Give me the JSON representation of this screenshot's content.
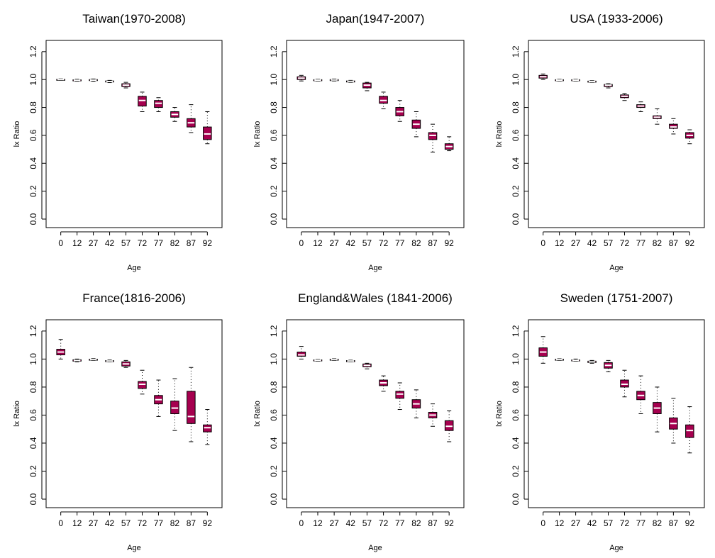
{
  "colors": {
    "box_fill": "#a6004f",
    "median": "#ffffff",
    "line": "#000000",
    "background": "#ffffff"
  },
  "chart_data": [
    {
      "type": "box",
      "title": "Taiwan(1970-2008)",
      "xlabel": "Age",
      "ylabel": "lx Ratio",
      "categories": [
        "0",
        "12",
        "27",
        "42",
        "57",
        "72",
        "77",
        "82",
        "87",
        "92"
      ],
      "ylim": [
        0,
        1.25
      ],
      "yticks": [
        "0.0",
        "0.2",
        "0.4",
        "0.6",
        "0.8",
        "1.0",
        "1.2"
      ],
      "boxes": [
        {
          "low": 0.995,
          "q1": 0.998,
          "median": 1.0,
          "q3": 1.002,
          "high": 1.005
        },
        {
          "low": 0.988,
          "q1": 0.992,
          "median": 0.995,
          "q3": 0.998,
          "high": 1.002
        },
        {
          "low": 0.988,
          "q1": 0.993,
          "median": 0.996,
          "q3": 1.0,
          "high": 1.004
        },
        {
          "low": 0.978,
          "q1": 0.983,
          "median": 0.986,
          "q3": 0.99,
          "high": 0.994
        },
        {
          "low": 0.94,
          "q1": 0.95,
          "median": 0.96,
          "q3": 0.97,
          "high": 0.98
        },
        {
          "low": 0.77,
          "q1": 0.81,
          "median": 0.85,
          "q3": 0.88,
          "high": 0.91
        },
        {
          "low": 0.77,
          "q1": 0.8,
          "median": 0.83,
          "q3": 0.85,
          "high": 0.87
        },
        {
          "low": 0.7,
          "q1": 0.73,
          "median": 0.75,
          "q3": 0.77,
          "high": 0.8
        },
        {
          "low": 0.62,
          "q1": 0.66,
          "median": 0.69,
          "q3": 0.72,
          "high": 0.82
        },
        {
          "low": 0.54,
          "q1": 0.57,
          "median": 0.61,
          "q3": 0.66,
          "high": 0.77
        }
      ]
    },
    {
      "type": "box",
      "title": "Japan(1947-2007)",
      "xlabel": "Age",
      "ylabel": "lx Ratio",
      "categories": [
        "0",
        "12",
        "27",
        "42",
        "57",
        "72",
        "77",
        "82",
        "87",
        "92"
      ],
      "ylim": [
        0,
        1.25
      ],
      "yticks": [
        "0.0",
        "0.2",
        "0.4",
        "0.6",
        "0.8",
        "1.0",
        "1.2"
      ],
      "boxes": [
        {
          "low": 0.99,
          "q1": 1.0,
          "median": 1.01,
          "q3": 1.02,
          "high": 1.03
        },
        {
          "low": 0.99,
          "q1": 0.993,
          "median": 0.996,
          "q3": 0.999,
          "high": 1.002
        },
        {
          "low": 0.99,
          "q1": 0.993,
          "median": 0.997,
          "q3": 1.0,
          "high": 1.004
        },
        {
          "low": 0.98,
          "q1": 0.984,
          "median": 0.987,
          "q3": 0.99,
          "high": 0.994
        },
        {
          "low": 0.92,
          "q1": 0.94,
          "median": 0.96,
          "q3": 0.975,
          "high": 0.98
        },
        {
          "low": 0.79,
          "q1": 0.83,
          "median": 0.85,
          "q3": 0.88,
          "high": 0.91
        },
        {
          "low": 0.7,
          "q1": 0.74,
          "median": 0.77,
          "q3": 0.8,
          "high": 0.85
        },
        {
          "low": 0.59,
          "q1": 0.65,
          "median": 0.68,
          "q3": 0.71,
          "high": 0.77
        },
        {
          "low": 0.48,
          "q1": 0.57,
          "median": 0.6,
          "q3": 0.62,
          "high": 0.68
        },
        {
          "low": 0.49,
          "q1": 0.5,
          "median": 0.52,
          "q3": 0.54,
          "high": 0.59
        }
      ]
    },
    {
      "type": "box",
      "title": "USA (1933-2006)",
      "xlabel": "Age",
      "ylabel": "lx Ratio",
      "categories": [
        "0",
        "12",
        "27",
        "42",
        "57",
        "72",
        "77",
        "82",
        "87",
        "92"
      ],
      "ylim": [
        0,
        1.25
      ],
      "yticks": [
        "0.0",
        "0.2",
        "0.4",
        "0.6",
        "0.8",
        "1.0",
        "1.2"
      ],
      "boxes": [
        {
          "low": 1.0,
          "q1": 1.01,
          "median": 1.02,
          "q3": 1.03,
          "high": 1.04
        },
        {
          "low": 0.99,
          "q1": 0.993,
          "median": 0.996,
          "q3": 0.999,
          "high": 1.002
        },
        {
          "low": 0.99,
          "q1": 0.993,
          "median": 0.996,
          "q3": 0.999,
          "high": 1.002
        },
        {
          "low": 0.98,
          "q1": 0.983,
          "median": 0.986,
          "q3": 0.989,
          "high": 0.992
        },
        {
          "low": 0.94,
          "q1": 0.95,
          "median": 0.96,
          "q3": 0.965,
          "high": 0.97
        },
        {
          "low": 0.85,
          "q1": 0.87,
          "median": 0.88,
          "q3": 0.89,
          "high": 0.9
        },
        {
          "low": 0.77,
          "q1": 0.8,
          "median": 0.81,
          "q3": 0.82,
          "high": 0.84
        },
        {
          "low": 0.68,
          "q1": 0.72,
          "median": 0.73,
          "q3": 0.74,
          "high": 0.79
        },
        {
          "low": 0.61,
          "q1": 0.65,
          "median": 0.66,
          "q3": 0.68,
          "high": 0.72
        },
        {
          "low": 0.54,
          "q1": 0.58,
          "median": 0.6,
          "q3": 0.62,
          "high": 0.64
        }
      ]
    },
    {
      "type": "box",
      "title": "France(1816-2006)",
      "xlabel": "Age",
      "ylabel": "lx Ratio",
      "categories": [
        "0",
        "12",
        "27",
        "42",
        "57",
        "72",
        "77",
        "82",
        "87",
        "92"
      ],
      "ylim": [
        0,
        1.25
      ],
      "yticks": [
        "0.0",
        "0.2",
        "0.4",
        "0.6",
        "0.8",
        "1.0",
        "1.2"
      ],
      "boxes": [
        {
          "low": 1.0,
          "q1": 1.03,
          "median": 1.05,
          "q3": 1.07,
          "high": 1.14
        },
        {
          "low": 0.98,
          "q1": 0.985,
          "median": 0.99,
          "q3": 0.995,
          "high": 1.0
        },
        {
          "low": 0.99,
          "q1": 0.993,
          "median": 0.996,
          "q3": 0.999,
          "high": 1.003
        },
        {
          "low": 0.98,
          "q1": 0.983,
          "median": 0.986,
          "q3": 0.989,
          "high": 0.993
        },
        {
          "low": 0.94,
          "q1": 0.95,
          "median": 0.965,
          "q3": 0.98,
          "high": 0.99
        },
        {
          "low": 0.75,
          "q1": 0.79,
          "median": 0.82,
          "q3": 0.84,
          "high": 0.92
        },
        {
          "low": 0.59,
          "q1": 0.68,
          "median": 0.71,
          "q3": 0.74,
          "high": 0.85
        },
        {
          "low": 0.49,
          "q1": 0.61,
          "median": 0.65,
          "q3": 0.7,
          "high": 0.86
        },
        {
          "low": 0.41,
          "q1": 0.54,
          "median": 0.59,
          "q3": 0.77,
          "high": 0.94
        },
        {
          "low": 0.39,
          "q1": 0.48,
          "median": 0.51,
          "q3": 0.53,
          "high": 0.64
        }
      ]
    },
    {
      "type": "box",
      "title": "England&Wales (1841-2006)",
      "xlabel": "Age",
      "ylabel": "lx Ratio",
      "categories": [
        "0",
        "12",
        "27",
        "42",
        "57",
        "72",
        "77",
        "82",
        "87",
        "92"
      ],
      "ylim": [
        0,
        1.25
      ],
      "yticks": [
        "0.0",
        "0.2",
        "0.4",
        "0.6",
        "0.8",
        "1.0",
        "1.2"
      ],
      "boxes": [
        {
          "low": 1.0,
          "q1": 1.02,
          "median": 1.03,
          "q3": 1.05,
          "high": 1.09
        },
        {
          "low": 0.985,
          "q1": 0.988,
          "median": 0.991,
          "q3": 0.994,
          "high": 0.997
        },
        {
          "low": 0.99,
          "q1": 0.993,
          "median": 0.996,
          "q3": 0.999,
          "high": 1.002
        },
        {
          "low": 0.98,
          "q1": 0.983,
          "median": 0.986,
          "q3": 0.989,
          "high": 0.992
        },
        {
          "low": 0.93,
          "q1": 0.945,
          "median": 0.955,
          "q3": 0.965,
          "high": 0.97
        },
        {
          "low": 0.77,
          "q1": 0.81,
          "median": 0.83,
          "q3": 0.85,
          "high": 0.88
        },
        {
          "low": 0.64,
          "q1": 0.72,
          "median": 0.75,
          "q3": 0.77,
          "high": 0.83
        },
        {
          "low": 0.58,
          "q1": 0.65,
          "median": 0.68,
          "q3": 0.71,
          "high": 0.78
        },
        {
          "low": 0.52,
          "q1": 0.58,
          "median": 0.6,
          "q3": 0.62,
          "high": 0.68
        },
        {
          "low": 0.41,
          "q1": 0.49,
          "median": 0.52,
          "q3": 0.56,
          "high": 0.63
        }
      ]
    },
    {
      "type": "box",
      "title": "Sweden (1751-2007)",
      "xlabel": "Age",
      "ylabel": "lx Ratio",
      "categories": [
        "0",
        "12",
        "27",
        "42",
        "57",
        "72",
        "77",
        "82",
        "87",
        "92"
      ],
      "ylim": [
        0,
        1.25
      ],
      "yticks": [
        "0.0",
        "0.2",
        "0.4",
        "0.6",
        "0.8",
        "1.0",
        "1.2"
      ],
      "boxes": [
        {
          "low": 0.97,
          "q1": 1.02,
          "median": 1.05,
          "q3": 1.08,
          "high": 1.16
        },
        {
          "low": 0.99,
          "q1": 0.993,
          "median": 0.996,
          "q3": 0.999,
          "high": 1.002
        },
        {
          "low": 0.985,
          "q1": 0.988,
          "median": 0.991,
          "q3": 0.994,
          "high": 1.0
        },
        {
          "low": 0.97,
          "q1": 0.975,
          "median": 0.98,
          "q3": 0.985,
          "high": 0.99
        },
        {
          "low": 0.91,
          "q1": 0.935,
          "median": 0.955,
          "q3": 0.975,
          "high": 0.99
        },
        {
          "low": 0.73,
          "q1": 0.8,
          "median": 0.82,
          "q3": 0.85,
          "high": 0.92
        },
        {
          "low": 0.61,
          "q1": 0.71,
          "median": 0.74,
          "q3": 0.77,
          "high": 0.88
        },
        {
          "low": 0.48,
          "q1": 0.61,
          "median": 0.65,
          "q3": 0.69,
          "high": 0.8
        },
        {
          "low": 0.4,
          "q1": 0.5,
          "median": 0.54,
          "q3": 0.58,
          "high": 0.72
        },
        {
          "low": 0.33,
          "q1": 0.44,
          "median": 0.49,
          "q3": 0.53,
          "high": 0.66
        }
      ]
    }
  ]
}
